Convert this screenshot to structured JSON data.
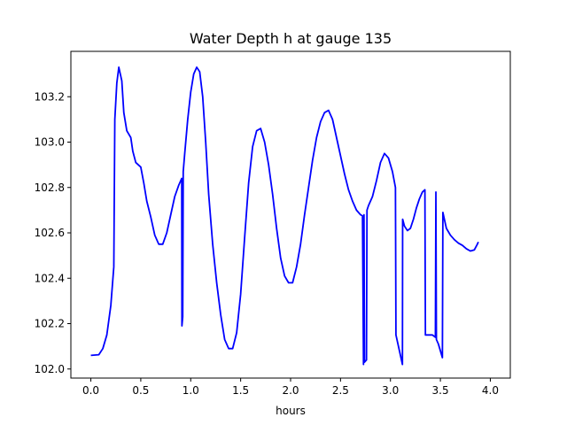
{
  "chart_data": {
    "type": "line",
    "title": "Water Depth h at gauge 135",
    "xlabel": "hours",
    "ylabel": "",
    "xlim": [
      -0.2,
      4.2
    ],
    "ylim": [
      101.96,
      103.4
    ],
    "grid": false,
    "legend": "none",
    "x_ticks": [
      0.0,
      0.5,
      1.0,
      1.5,
      2.0,
      2.5,
      3.0,
      3.5,
      4.0
    ],
    "x_tick_labels": [
      "0.0",
      "0.5",
      "1.0",
      "1.5",
      "2.0",
      "2.5",
      "3.0",
      "3.5",
      "4.0"
    ],
    "y_ticks": [
      102.0,
      102.2,
      102.4,
      102.6,
      102.8,
      103.0,
      103.2
    ],
    "y_tick_labels": [
      "102.0",
      "102.2",
      "102.4",
      "102.6",
      "102.8",
      "103.0",
      "103.2"
    ],
    "series": [
      {
        "color": "#0000ff",
        "points": [
          [
            0.0,
            102.06
          ],
          [
            0.08,
            102.063
          ],
          [
            0.12,
            102.09
          ],
          [
            0.16,
            102.15
          ],
          [
            0.2,
            102.28
          ],
          [
            0.23,
            102.45
          ],
          [
            0.24,
            103.1
          ],
          [
            0.26,
            103.26
          ],
          [
            0.28,
            103.33
          ],
          [
            0.31,
            103.27
          ],
          [
            0.33,
            103.13
          ],
          [
            0.36,
            103.05
          ],
          [
            0.4,
            103.02
          ],
          [
            0.42,
            102.96
          ],
          [
            0.45,
            102.91
          ],
          [
            0.5,
            102.89
          ],
          [
            0.53,
            102.82
          ],
          [
            0.56,
            102.74
          ],
          [
            0.6,
            102.67
          ],
          [
            0.64,
            102.59
          ],
          [
            0.68,
            102.55
          ],
          [
            0.72,
            102.55
          ],
          [
            0.76,
            102.6
          ],
          [
            0.8,
            102.68
          ],
          [
            0.84,
            102.76
          ],
          [
            0.88,
            102.81
          ],
          [
            0.91,
            102.84
          ],
          [
            0.912,
            102.19
          ],
          [
            0.92,
            102.23
          ],
          [
            0.925,
            102.87
          ],
          [
            0.94,
            102.95
          ],
          [
            0.97,
            103.1
          ],
          [
            1.0,
            103.22
          ],
          [
            1.03,
            103.3
          ],
          [
            1.06,
            103.33
          ],
          [
            1.09,
            103.31
          ],
          [
            1.12,
            103.2
          ],
          [
            1.15,
            103.0
          ],
          [
            1.18,
            102.77
          ],
          [
            1.22,
            102.55
          ],
          [
            1.26,
            102.38
          ],
          [
            1.3,
            102.24
          ],
          [
            1.34,
            102.13
          ],
          [
            1.38,
            102.09
          ],
          [
            1.42,
            102.09
          ],
          [
            1.46,
            102.16
          ],
          [
            1.5,
            102.33
          ],
          [
            1.54,
            102.58
          ],
          [
            1.58,
            102.82
          ],
          [
            1.62,
            102.98
          ],
          [
            1.66,
            103.05
          ],
          [
            1.7,
            103.06
          ],
          [
            1.74,
            103.0
          ],
          [
            1.78,
            102.9
          ],
          [
            1.82,
            102.77
          ],
          [
            1.86,
            102.62
          ],
          [
            1.9,
            102.49
          ],
          [
            1.94,
            102.41
          ],
          [
            1.98,
            102.38
          ],
          [
            2.02,
            102.38
          ],
          [
            2.06,
            102.45
          ],
          [
            2.1,
            102.55
          ],
          [
            2.14,
            102.68
          ],
          [
            2.18,
            102.8
          ],
          [
            2.22,
            102.92
          ],
          [
            2.26,
            103.02
          ],
          [
            2.3,
            103.09
          ],
          [
            2.34,
            103.13
          ],
          [
            2.38,
            103.14
          ],
          [
            2.42,
            103.1
          ],
          [
            2.46,
            103.02
          ],
          [
            2.5,
            102.94
          ],
          [
            2.54,
            102.86
          ],
          [
            2.58,
            102.79
          ],
          [
            2.62,
            102.74
          ],
          [
            2.66,
            102.7
          ],
          [
            2.7,
            102.68
          ],
          [
            2.72,
            102.675
          ],
          [
            2.73,
            102.02
          ],
          [
            2.735,
            102.68
          ],
          [
            2.74,
            102.03
          ],
          [
            2.76,
            102.04
          ],
          [
            2.765,
            102.7
          ],
          [
            2.78,
            102.72
          ],
          [
            2.82,
            102.76
          ],
          [
            2.86,
            102.83
          ],
          [
            2.9,
            102.91
          ],
          [
            2.94,
            102.95
          ],
          [
            2.98,
            102.93
          ],
          [
            3.02,
            102.87
          ],
          [
            3.05,
            102.8
          ],
          [
            3.055,
            102.15
          ],
          [
            3.09,
            102.08
          ],
          [
            3.12,
            102.02
          ],
          [
            3.122,
            102.66
          ],
          [
            3.14,
            102.63
          ],
          [
            3.17,
            102.61
          ],
          [
            3.2,
            102.62
          ],
          [
            3.23,
            102.66
          ],
          [
            3.26,
            102.71
          ],
          [
            3.29,
            102.75
          ],
          [
            3.32,
            102.78
          ],
          [
            3.345,
            102.79
          ],
          [
            3.35,
            102.15
          ],
          [
            3.38,
            102.15
          ],
          [
            3.42,
            102.15
          ],
          [
            3.45,
            102.14
          ],
          [
            3.455,
            102.78
          ],
          [
            3.46,
            102.13
          ],
          [
            3.48,
            102.11
          ],
          [
            3.52,
            102.05
          ],
          [
            3.525,
            102.69
          ],
          [
            3.56,
            102.62
          ],
          [
            3.6,
            102.59
          ],
          [
            3.64,
            102.57
          ],
          [
            3.68,
            102.555
          ],
          [
            3.72,
            102.545
          ],
          [
            3.76,
            102.53
          ],
          [
            3.8,
            102.52
          ],
          [
            3.84,
            102.525
          ],
          [
            3.87,
            102.55
          ],
          [
            3.88,
            102.56
          ]
        ]
      }
    ]
  }
}
